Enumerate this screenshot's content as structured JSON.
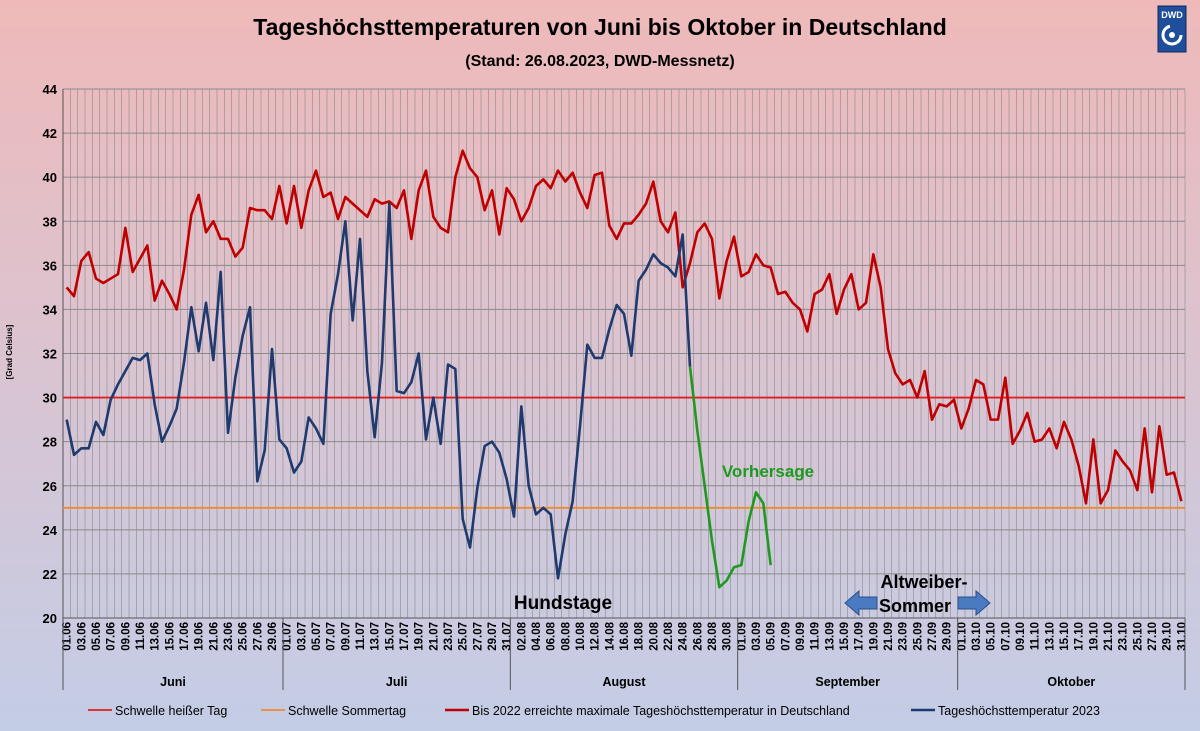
{
  "chart_data": {
    "type": "line",
    "title": "Tageshöchsttemperaturen von Juni bis Oktober in Deutschland",
    "subtitle": "(Stand: 26.08.2023, DWD-Messnetz)",
    "ylabel": "[Grad Celsius]",
    "ylim": [
      20,
      44
    ],
    "yticks": [
      20,
      22,
      24,
      26,
      28,
      30,
      32,
      34,
      36,
      38,
      40,
      42,
      44
    ],
    "grid": true,
    "legend_position": "bottom",
    "logo_text": "DWD",
    "x_tick_labels": [
      "01.06",
      "03.06",
      "05.06",
      "07.06",
      "09.06",
      "11.06",
      "13.06",
      "15.06",
      "17.06",
      "19.06",
      "21.06",
      "23.06",
      "25.06",
      "27.06",
      "29.06",
      "01.07",
      "03.07",
      "05.07",
      "07.07",
      "09.07",
      "11.07",
      "13.07",
      "15.07",
      "17.07",
      "19.07",
      "21.07",
      "23.07",
      "25.07",
      "27.07",
      "29.07",
      "31.07",
      "02.08",
      "04.08",
      "06.08",
      "08.08",
      "10.08",
      "12.08",
      "14.08",
      "16.08",
      "18.08",
      "20.08",
      "22.08",
      "24.08",
      "26.08",
      "28.08",
      "30.08",
      "01.09",
      "03.09",
      "05.09",
      "07.09",
      "09.09",
      "11.09",
      "13.09",
      "15.09",
      "17.09",
      "19.09",
      "21.09",
      "23.09",
      "25.09",
      "27.09",
      "29.09",
      "01.10",
      "03.10",
      "05.10",
      "07.10",
      "09.10",
      "11.10",
      "13.10",
      "15.10",
      "17.10",
      "19.10",
      "21.10",
      "23.10",
      "25.10",
      "27.10",
      "29.10",
      "31.10"
    ],
    "months": [
      "Juni",
      "Juli",
      "August",
      "September",
      "Oktober"
    ],
    "month_days": [
      30,
      31,
      31,
      30,
      31
    ],
    "thresholds": [
      {
        "name": "Schwelle heißer Tag",
        "value": 30,
        "color": "#e02020"
      },
      {
        "name": "Schwelle Sommertag",
        "value": 25,
        "color": "#f08a30"
      }
    ],
    "series": [
      {
        "name": "Bis 2022 erreichte maximale Tageshöchsttemperatur in Deutschland",
        "color": "#c00000",
        "start_day": 1,
        "values": [
          35.0,
          34.6,
          36.2,
          36.6,
          35.4,
          35.2,
          35.4,
          35.6,
          37.7,
          35.7,
          36.3,
          36.9,
          34.4,
          35.3,
          34.7,
          34.0,
          35.8,
          38.3,
          39.2,
          37.5,
          38.0,
          37.2,
          37.2,
          36.4,
          36.8,
          38.6,
          38.5,
          38.5,
          38.1,
          39.6,
          37.9,
          39.6,
          37.7,
          39.4,
          40.3,
          39.1,
          39.3,
          38.1,
          39.1,
          38.8,
          38.5,
          38.2,
          39.0,
          38.8,
          38.9,
          38.6,
          39.4,
          37.2,
          39.4,
          40.3,
          38.2,
          37.7,
          37.5,
          40.0,
          41.2,
          40.4,
          40.0,
          38.5,
          39.4,
          37.4,
          39.5,
          39.0,
          38.0,
          38.6,
          39.6,
          39.9,
          39.5,
          40.3,
          39.8,
          40.2,
          39.3,
          38.6,
          40.1,
          40.2,
          37.8,
          37.2,
          37.9,
          37.9,
          38.3,
          38.8,
          39.8,
          38.0,
          37.5,
          38.4,
          35.0,
          36.1,
          37.5,
          37.9,
          37.2,
          34.5,
          36.2,
          37.3,
          35.5,
          35.7,
          36.5,
          36.0,
          35.9,
          34.7,
          34.8,
          34.3,
          34.0,
          33.0,
          34.7,
          34.9,
          35.6,
          33.8,
          34.9,
          35.6,
          34.0,
          34.3,
          36.5,
          35.0,
          32.2,
          31.1,
          30.6,
          30.8,
          30.0,
          31.2,
          29.0,
          29.7,
          29.6,
          29.9,
          28.6,
          29.5,
          30.8,
          30.6,
          29.0,
          29.0,
          30.9,
          27.9,
          28.5,
          29.3,
          28.0,
          28.1,
          28.6,
          27.7,
          28.9,
          28.1,
          26.9,
          25.2,
          28.1,
          25.2,
          25.8,
          27.6,
          27.1,
          26.7,
          25.8,
          28.6,
          25.7,
          28.7,
          26.5,
          26.6,
          25.3
        ]
      },
      {
        "name": "Tageshöchsttemperatur 2023",
        "color": "#1f3a6e",
        "start_day": 1,
        "values": [
          29.0,
          27.4,
          27.7,
          27.7,
          28.9,
          28.3,
          29.9,
          30.6,
          31.2,
          31.8,
          31.7,
          32.0,
          29.7,
          28.0,
          28.7,
          29.5,
          31.6,
          34.1,
          32.1,
          34.3,
          31.7,
          35.7,
          28.4,
          30.9,
          32.8,
          34.1,
          26.2,
          27.6,
          32.2,
          28.1,
          27.7,
          26.6,
          27.1,
          29.1,
          28.6,
          27.9,
          33.8,
          35.6,
          38.0,
          33.5,
          37.2,
          31.2,
          28.2,
          31.6,
          38.8,
          30.3,
          30.2,
          30.7,
          32.0,
          28.1,
          30.0,
          27.9,
          31.5,
          31.3,
          24.5,
          23.2,
          25.9,
          27.8,
          28.0,
          27.5,
          26.3,
          24.6,
          29.6,
          26.0,
          24.7,
          25.0,
          24.7,
          21.8,
          23.8,
          25.3,
          28.7,
          32.4,
          31.8,
          31.8,
          33.1,
          34.2,
          33.8,
          31.9,
          35.3,
          35.8,
          36.5,
          36.1,
          35.9,
          35.5,
          37.4,
          31.4
        ]
      },
      {
        "name": "Vorhersage",
        "color": "#1f9a1f",
        "start_day": 86,
        "values": [
          31.4,
          28.5,
          26.0,
          23.5,
          21.4,
          21.7,
          22.3,
          22.4,
          24.4,
          25.7,
          25.2,
          22.4
        ]
      }
    ],
    "annotations": [
      {
        "text": "Vorhersage",
        "color": "#1f9a1f"
      },
      {
        "text": "Hundstage",
        "color": "#000000"
      },
      {
        "text": "Altweiber-",
        "color": "#000000"
      },
      {
        "text": "Sommer",
        "color": "#000000"
      }
    ]
  }
}
